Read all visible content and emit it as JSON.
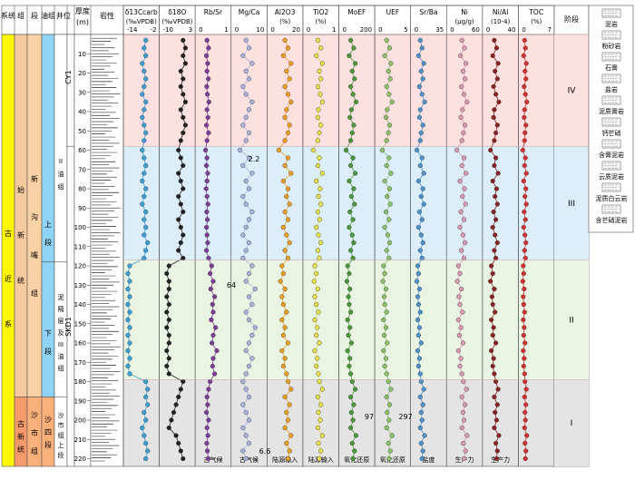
{
  "strat_columns": {
    "headers": [
      "系统",
      "组",
      "段",
      "油组",
      "井位",
      "厚度 (m)",
      "岩性"
    ],
    "system": [
      "古",
      "近",
      "系"
    ],
    "series": [
      "古新统",
      "始新统"
    ],
    "formation_upper": [
      "新",
      "沟",
      "嘴",
      "组"
    ],
    "formation_lower": [
      "沙",
      "市",
      "组"
    ],
    "member_upper": [
      "上",
      "段"
    ],
    "member_lower": [
      "下",
      "段"
    ],
    "member_bottom": [
      "沙",
      "四",
      "段"
    ],
    "oil_group_upper": [
      "II",
      "油",
      "组"
    ],
    "oil_group_lower": [
      "泥",
      "隔",
      "层",
      "及",
      "III",
      "油",
      "组"
    ],
    "oil_group_bottom": [
      "沙",
      "市",
      "组",
      "上",
      "段"
    ],
    "wells": [
      "CY1",
      "SKD1"
    ]
  },
  "depth_axis": {
    "ticks": [
      10,
      20,
      30,
      40,
      50,
      60,
      70,
      80,
      90,
      100,
      110,
      120,
      130,
      140,
      150,
      160,
      170,
      180,
      190,
      200,
      210,
      220
    ],
    "range": [
      0,
      224
    ]
  },
  "stage_header": "阶段",
  "stages": [
    {
      "label": "IV",
      "from": 0,
      "to": 58,
      "color": "#fde0e0"
    },
    {
      "label": "III",
      "from": 58,
      "to": 117,
      "color": "#dceefa"
    },
    {
      "label": "II",
      "from": 117,
      "to": 179,
      "color": "#eaf4e2"
    },
    {
      "label": "I",
      "from": 179,
      "to": 224,
      "color": "#e4e4e4"
    }
  ],
  "proxy_panels": [
    {
      "title": "δ13Ccarb (‰VPDB)",
      "ticks": [
        "-14",
        "-2",
        "-2"
      ],
      "color": "#3aa0d8",
      "range": [
        -14,
        3
      ],
      "bottom": [
        "",
        ""
      ]
    },
    {
      "title": "δ18O (‰VPDB)",
      "ticks": [
        "-10",
        "3"
      ],
      "color": "#222",
      "range": [
        -10,
        3
      ],
      "bottom": [
        "",
        ""
      ]
    },
    {
      "title": "Rb/Sr",
      "ticks": [
        "0",
        "1"
      ],
      "color": "#7d3c98",
      "range": [
        0,
        1
      ],
      "bottom": [
        "古气候",
        "干旱潮湿"
      ]
    },
    {
      "title": "Mg/Ca",
      "ticks": [
        "0",
        "10"
      ],
      "color": "#a9b3dd",
      "range": [
        0,
        10
      ],
      "bottom": [
        "古气候",
        "干旱潮湿"
      ]
    },
    {
      "title": "Al2O3 (%)",
      "ticks": [
        "0",
        "20"
      ],
      "color": "#f0a020",
      "range": [
        0,
        20
      ],
      "bottom": [
        "陆源输入",
        "弱强"
      ]
    },
    {
      "title": "TiO2 (%)",
      "ticks": [
        "0",
        "1"
      ],
      "color": "#e7e24a",
      "range": [
        0,
        1
      ],
      "bottom": [
        "陆源输入",
        "弱强"
      ]
    },
    {
      "title": "MoEF",
      "ticks": [
        "0",
        "200"
      ],
      "color": "#4a9a3a",
      "range": [
        0,
        200
      ],
      "bottom": [
        "氧化还原",
        "氧化还原"
      ]
    },
    {
      "title": "UEF",
      "ticks": [
        "0",
        "5"
      ],
      "color": "#8cc26a",
      "range": [
        0,
        5
      ],
      "bottom": [
        "氧化还原",
        "氧化还原"
      ]
    },
    {
      "title": "Sr/Ba",
      "ticks": [
        "0",
        "5",
        "35"
      ],
      "color": "#4d94cf",
      "range": [
        0,
        35
      ],
      "bottom": [
        "盐度",
        "低高"
      ]
    },
    {
      "title": "Ni (μg/g)",
      "ticks": [
        "0",
        "60"
      ],
      "color": "#d99ab2",
      "range": [
        0,
        60
      ],
      "bottom": [
        "生产力",
        "低高"
      ]
    },
    {
      "title": "Ni/Al (10-4)",
      "ticks": [
        "0",
        "40"
      ],
      "color": "#8c2323",
      "range": [
        0,
        40
      ],
      "bottom": [
        "生产力",
        "低高"
      ]
    },
    {
      "title": "TOC (%)",
      "ticks": [
        "0",
        "7"
      ],
      "color": "#d83030",
      "range": [
        0,
        7
      ],
      "bottom": [
        "",
        ""
      ]
    }
  ],
  "annotations": [
    "2.2",
    "64",
    "6.6",
    "97",
    "297"
  ],
  "legend": [
    {
      "label": "泥岩",
      "pattern": "dash"
    },
    {
      "label": "粉砂岩",
      "pattern": "dot"
    },
    {
      "label": "石膏",
      "pattern": "brick"
    },
    {
      "label": "盐岩",
      "pattern": "grid"
    },
    {
      "label": "泥质膏岩",
      "pattern": "brick-dash"
    },
    {
      "label": "钙芒硝",
      "pattern": "cross"
    },
    {
      "label": "含膏泥岩",
      "pattern": "dash-brick"
    },
    {
      "label": "云质泥岩",
      "pattern": "dash-slash"
    },
    {
      "label": "泥质白云岩",
      "pattern": "slash-dash"
    },
    {
      "label": "含芒硝泥岩",
      "pattern": "dash-cross"
    }
  ],
  "chart_data": {
    "type": "line",
    "depths": [
      3,
      7,
      11,
      15,
      19,
      23,
      27,
      31,
      35,
      39,
      43,
      47,
      51,
      55,
      60,
      64,
      68,
      72,
      76,
      80,
      84,
      88,
      92,
      96,
      100,
      104,
      108,
      112,
      116,
      120,
      124,
      128,
      132,
      136,
      140,
      144,
      148,
      152,
      156,
      160,
      164,
      168,
      172,
      176,
      180,
      184,
      188,
      192,
      196,
      200,
      204,
      208,
      212,
      216,
      220
    ],
    "series": [
      {
        "name": "δ13Ccarb",
        "values": [
          -3,
          -4,
          -3,
          -5,
          -4,
          -3,
          -4,
          -5,
          -3,
          -4,
          -5,
          -4,
          -3,
          -4,
          -5,
          -4,
          -3,
          -4,
          -5,
          -3,
          -4,
          -5,
          -3,
          -4,
          -3,
          -4,
          -2,
          -3,
          -4,
          -12,
          -13,
          -12,
          -13,
          -12,
          -13,
          -12,
          -13,
          -12,
          -13,
          -12,
          -13,
          -12,
          -13,
          -12,
          -3,
          -2,
          -3,
          -2,
          -4,
          -3,
          -5,
          -4,
          -3,
          -2,
          -3
        ]
      },
      {
        "name": "δ18O",
        "values": [
          -1,
          0,
          -1,
          0,
          -2,
          -1,
          -2,
          -1,
          0,
          -2,
          -1,
          0,
          -1,
          -2,
          -3,
          -2,
          -1,
          -3,
          -2,
          -1,
          -3,
          -2,
          -1,
          -3,
          -2,
          -1,
          -2,
          -3,
          -1,
          -7,
          -8,
          -7,
          -7,
          -8,
          -7,
          -8,
          -7,
          -8,
          -7,
          -7,
          -8,
          -7,
          -8,
          -7,
          -1,
          -2,
          -3,
          -4,
          -5,
          -6,
          -7,
          -4,
          -3,
          -2,
          -1
        ]
      },
      {
        "name": "Rb/Sr",
        "values": [
          0.3,
          0.35,
          0.28,
          0.32,
          0.3,
          0.34,
          0.29,
          0.31,
          0.36,
          0.3,
          0.33,
          0.28,
          0.35,
          0.3,
          0.25,
          0.3,
          0.28,
          0.32,
          0.3,
          0.27,
          0.3,
          0.33,
          0.29,
          0.31,
          0.28,
          0.3,
          0.32,
          0.28,
          0.35,
          0.45,
          0.4,
          0.5,
          0.42,
          0.55,
          0.48,
          0.5,
          0.44,
          0.58,
          0.5,
          0.46,
          0.62,
          0.5,
          0.48,
          0.55,
          0.4,
          0.35,
          0.3,
          0.32,
          0.28,
          0.35,
          0.3,
          0.33,
          0.29,
          0.31,
          0.34
        ]
      },
      {
        "name": "Mg/Ca",
        "values": [
          4,
          5,
          3,
          6,
          4,
          5,
          3,
          4,
          6,
          5,
          4,
          3,
          5,
          4,
          2,
          5,
          3,
          6,
          4,
          5,
          3,
          4,
          6,
          5,
          4,
          3,
          5,
          4,
          3,
          6,
          5,
          4,
          7,
          5,
          6,
          4,
          5,
          7,
          6,
          5,
          4,
          6,
          5,
          4,
          3,
          4,
          5,
          3,
          4,
          5,
          3,
          4,
          5,
          3,
          4
        ]
      },
      {
        "name": "Al2O3",
        "values": [
          10,
          12,
          9,
          14,
          11,
          13,
          10,
          12,
          14,
          11,
          10,
          13,
          12,
          10,
          6,
          12,
          10,
          14,
          9,
          12,
          11,
          13,
          10,
          12,
          9,
          11,
          13,
          10,
          12,
          8,
          9,
          7,
          10,
          8,
          9,
          11,
          8,
          10,
          9,
          12,
          8,
          10,
          9,
          11,
          12,
          14,
          10,
          13,
          11,
          12,
          10,
          14,
          11,
          13,
          12
        ]
      },
      {
        "name": "TiO2",
        "values": [
          0.4,
          0.5,
          0.35,
          0.55,
          0.45,
          0.5,
          0.4,
          0.48,
          0.55,
          0.42,
          0.4,
          0.5,
          0.45,
          0.4,
          0.25,
          0.45,
          0.4,
          0.55,
          0.35,
          0.48,
          0.42,
          0.5,
          0.4,
          0.46,
          0.35,
          0.42,
          0.5,
          0.4,
          0.45,
          0.3,
          0.35,
          0.28,
          0.4,
          0.3,
          0.35,
          0.42,
          0.3,
          0.38,
          0.35,
          0.45,
          0.3,
          0.38,
          0.35,
          0.42,
          0.45,
          0.55,
          0.4,
          0.5,
          0.42,
          0.48,
          0.4,
          0.55,
          0.42,
          0.5,
          0.45
        ]
      },
      {
        "name": "MoEF",
        "values": [
          60,
          80,
          50,
          90,
          70,
          85,
          60,
          75,
          95,
          65,
          55,
          80,
          70,
          60,
          30,
          75,
          60,
          90,
          50,
          80,
          65,
          85,
          55,
          75,
          50,
          70,
          80,
          60,
          75,
          40,
          50,
          35,
          55,
          45,
          50,
          60,
          40,
          55,
          45,
          65,
          40,
          55,
          50,
          60,
          70,
          90,
          60,
          80,
          65,
          75,
          60,
          95,
          70,
          85,
          75
        ]
      },
      {
        "name": "UEF",
        "values": [
          1.5,
          2,
          1.2,
          2.2,
          1.8,
          2.1,
          1.5,
          1.9,
          2.4,
          1.6,
          1.4,
          2,
          1.8,
          1.5,
          0.8,
          1.9,
          1.5,
          2.2,
          1.2,
          2,
          1.6,
          2.1,
          1.4,
          1.9,
          1.2,
          1.7,
          2,
          1.5,
          1.9,
          1,
          1.2,
          0.9,
          1.4,
          1.1,
          1.2,
          1.5,
          1,
          1.4,
          1.1,
          1.6,
          1,
          1.4,
          1.2,
          1.5,
          1.8,
          2.2,
          1.5,
          2,
          1.6,
          1.9,
          1.5,
          2.4,
          1.8,
          2.1,
          1.9
        ]
      },
      {
        "name": "Sr/Ba",
        "values": [
          8,
          10,
          6,
          12,
          9,
          11,
          7,
          10,
          13,
          8,
          7,
          11,
          9,
          8,
          4,
          10,
          8,
          12,
          6,
          11,
          9,
          12,
          7,
          10,
          6,
          9,
          11,
          8,
          10,
          5,
          6,
          4,
          7,
          5,
          6,
          8,
          5,
          7,
          6,
          9,
          5,
          7,
          6,
          8,
          9,
          12,
          8,
          11,
          9,
          10,
          8,
          13,
          9,
          11,
          10
        ]
      },
      {
        "name": "Ni",
        "values": [
          25,
          30,
          22,
          33,
          27,
          31,
          24,
          29,
          35,
          26,
          23,
          31,
          28,
          25,
          15,
          29,
          25,
          33,
          21,
          30,
          26,
          32,
          23,
          29,
          21,
          27,
          31,
          24,
          29,
          18,
          21,
          16,
          24,
          19,
          21,
          26,
          18,
          23,
          20,
          27,
          18,
          23,
          21,
          25,
          28,
          34,
          25,
          31,
          27,
          29,
          25,
          35,
          28,
          32,
          29
        ]
      },
      {
        "name": "Ni/Al",
        "values": [
          12,
          15,
          10,
          17,
          13,
          16,
          11,
          14,
          18,
          12,
          11,
          16,
          14,
          12,
          7,
          14,
          12,
          17,
          10,
          15,
          13,
          16,
          11,
          14,
          10,
          13,
          16,
          12,
          14,
          8,
          10,
          7,
          12,
          9,
          10,
          13,
          8,
          11,
          10,
          14,
          8,
          11,
          10,
          12,
          14,
          17,
          12,
          16,
          13,
          15,
          12,
          18,
          14,
          16,
          15
        ]
      },
      {
        "name": "TOC",
        "values": [
          0.8,
          1,
          0.6,
          1.2,
          0.9,
          1.1,
          0.7,
          1,
          1.3,
          0.8,
          0.7,
          1.1,
          0.9,
          0.8,
          0.4,
          1,
          0.8,
          1.2,
          0.6,
          1.1,
          0.9,
          1.2,
          0.7,
          1,
          0.6,
          0.9,
          1.1,
          0.8,
          1,
          0.5,
          0.6,
          0.4,
          0.7,
          0.5,
          0.6,
          0.8,
          0.5,
          0.7,
          0.6,
          0.9,
          0.5,
          0.7,
          0.6,
          0.8,
          0.9,
          1.2,
          0.8,
          1.1,
          0.9,
          1,
          0.8,
          1.3,
          0.9,
          1.1,
          1
        ]
      }
    ]
  }
}
